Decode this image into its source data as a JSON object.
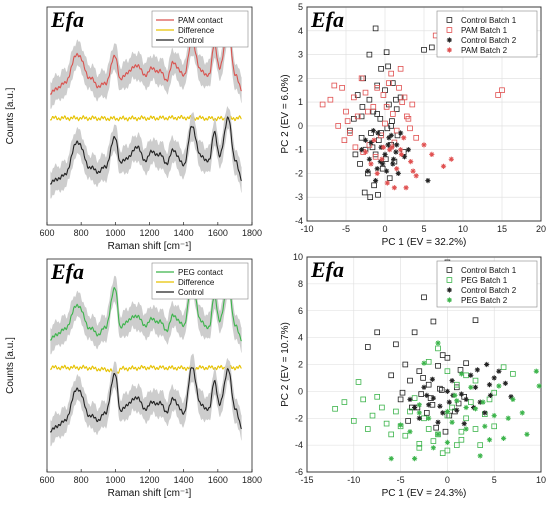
{
  "chart_data": [
    {
      "type": "line",
      "panel_label": "Efa",
      "xlabel": "Raman shift [cm⁻¹]",
      "ylabel": "Counts [a.u.]",
      "xlim": [
        600,
        1800
      ],
      "xticks": [
        600,
        800,
        1000,
        1200,
        1400,
        1600,
        1800
      ],
      "legend": {
        "placement": "top-right",
        "entries": [
          "PAM contact",
          "Difference",
          "Control"
        ]
      },
      "series": [
        {
          "name": "PAM contact",
          "color": "#d9534f",
          "band_color": "#c8c8c8",
          "x": [
            620,
            700,
            780,
            850,
            900,
            940,
            1000,
            1030,
            1080,
            1130,
            1170,
            1210,
            1260,
            1300,
            1340,
            1400,
            1450,
            1500,
            1550,
            1580,
            1610,
            1660,
            1700,
            1740
          ],
          "y": [
            3.2,
            3.6,
            5.0,
            3.9,
            3.5,
            3.6,
            4.9,
            3.8,
            4.2,
            4.5,
            4.0,
            4.3,
            4.2,
            3.8,
            4.6,
            4.0,
            5.6,
            4.2,
            4.0,
            5.5,
            4.3,
            6.2,
            4.1,
            3.3
          ]
        },
        {
          "name": "Difference",
          "color": "#e6c200",
          "x": [
            620,
            800,
            1000,
            1200,
            1400,
            1600,
            1740
          ],
          "y": [
            2.0,
            2.0,
            1.98,
            2.0,
            2.02,
            1.98,
            2.0
          ]
        },
        {
          "name": "Control",
          "color": "#222222",
          "band_color": "#c8c8c8",
          "x": [
            620,
            700,
            780,
            850,
            900,
            940,
            1000,
            1030,
            1080,
            1130,
            1170,
            1210,
            1260,
            1300,
            1340,
            1400,
            1450,
            1500,
            1550,
            1580,
            1610,
            1660,
            1700,
            1740
          ],
          "y": [
            -1.0,
            -0.7,
            0.9,
            -0.3,
            -0.5,
            -0.3,
            1.1,
            -0.1,
            0.2,
            0.7,
            0.0,
            0.4,
            0.3,
            -0.1,
            0.5,
            -0.2,
            1.6,
            0.2,
            0.0,
            1.4,
            0.2,
            2.0,
            0.1,
            -0.9
          ]
        }
      ]
    },
    {
      "type": "scatter",
      "panel_label": "Efa",
      "xlabel": "PC 1 (EV = 32.2%)",
      "ylabel": "PC 2 (EV = 6.0%)",
      "xlim": [
        -10,
        20
      ],
      "ylim": [
        -4,
        5
      ],
      "xticks": [
        -10,
        -5,
        0,
        5,
        10,
        15,
        20
      ],
      "yticks": [
        -4,
        -3,
        -2,
        -1,
        0,
        1,
        2,
        3,
        4,
        5
      ],
      "grid": true,
      "legend": {
        "placement": "top-right"
      },
      "series": [
        {
          "name": "Control Batch 1",
          "marker": "square",
          "color": "#222222",
          "x": [
            -3.5,
            -2.8,
            -2.0,
            -1.5,
            -1.0,
            -0.5,
            0.0,
            0.5,
            1.0,
            1.5,
            2.0,
            -3.0,
            -2.5,
            -1.8,
            -1.2,
            -0.8,
            0.3,
            0.8,
            1.2,
            -4.0,
            -3.2,
            -2.2,
            -1.4,
            -0.3,
            0.6,
            1.6,
            2.4,
            -2.6,
            -1.9,
            -0.9,
            0.1,
            0.9,
            -4.5,
            -3.8,
            -2.9,
            -1.6,
            -0.6,
            0.4,
            1.4,
            -1.2,
            0.2,
            -2.0,
            5.0,
            6.0,
            -0.5,
            0.8,
            -3.0,
            -1.0
          ],
          "y": [
            1.3,
            2.0,
            1.1,
            0.6,
            1.7,
            2.4,
            1.5,
            0.9,
            1.8,
            0.7,
            1.2,
            -0.5,
            -1.0,
            -0.3,
            -1.2,
            -0.6,
            -0.1,
            -0.8,
            -1.5,
            0.3,
            -1.6,
            -2.0,
            -2.5,
            -1.8,
            -2.2,
            -0.4,
            -1.1,
            -2.8,
            -3.0,
            -2.9,
            -1.4,
            0.2,
            -0.2,
            -1.2,
            0.8,
            -0.9,
            0.3,
            2.5,
            1.1,
            4.1,
            3.1,
            3.0,
            3.2,
            3.3,
            -0.3,
            0.0,
            0.4,
            0.5
          ]
        },
        {
          "name": "PAM Batch 1",
          "marker": "square",
          "color": "#e05050",
          "x": [
            -8.0,
            -7.0,
            -6.0,
            -5.5,
            -5.0,
            -4.5,
            -4.0,
            -3.5,
            -3.0,
            -2.5,
            -2.0,
            -1.5,
            -1.0,
            -0.5,
            0.0,
            0.5,
            1.0,
            1.5,
            2.0,
            2.5,
            3.0,
            3.5,
            4.0,
            14.5,
            15.0,
            -6.5,
            -4.8,
            -3.8,
            -2.2,
            -1.2,
            0.2,
            1.2,
            2.2,
            3.2,
            -5.2,
            -2.8,
            -0.2,
            2.8,
            6.5,
            0.8,
            1.8
          ],
          "y": [
            0.9,
            1.1,
            0.0,
            1.6,
            0.6,
            -0.3,
            1.2,
            0.4,
            2.0,
            1.4,
            -0.8,
            0.8,
            1.6,
            -0.4,
            0.1,
            1.8,
            0.5,
            -0.2,
            2.4,
            1.2,
            0.3,
            0.9,
            -0.5,
            1.3,
            1.5,
            1.7,
            0.2,
            -0.9,
            0.6,
            -1.3,
            0.8,
            -0.7,
            1.0,
            -0.1,
            -0.6,
            -1.1,
            1.3,
            0.4,
            3.8,
            2.2,
            1.6
          ]
        },
        {
          "name": "Control Batch 2",
          "marker": "star",
          "color": "#222222",
          "x": [
            -3.0,
            -2.5,
            -2.0,
            -1.5,
            -1.0,
            -0.5,
            0.0,
            0.5,
            1.0,
            1.5,
            2.0,
            2.5,
            -1.8,
            -1.2,
            -0.6,
            0.2,
            0.8,
            1.4,
            -2.2,
            -0.9,
            0.4,
            1.7,
            3.0,
            5.5,
            -0.3,
            1.1
          ],
          "y": [
            -1.0,
            -0.6,
            -1.4,
            -0.2,
            -1.8,
            -0.9,
            -1.2,
            -0.5,
            -1.6,
            -0.8,
            -0.3,
            -1.3,
            -0.7,
            -2.3,
            -1.5,
            -1.9,
            -0.4,
            -1.1,
            -1.9,
            -0.3,
            -0.8,
            -2.0,
            -1.0,
            -2.3,
            -1.6,
            -1.4
          ]
        },
        {
          "name": "PAM Batch 2",
          "marker": "star",
          "color": "#e05050",
          "x": [
            -2.5,
            -1.8,
            -1.0,
            -0.4,
            0.3,
            0.9,
            1.5,
            2.1,
            2.7,
            3.3,
            4.0,
            5.0,
            6.0,
            7.5,
            -1.4,
            0.6,
            2.4,
            3.6,
            8.5,
            1.2,
            -0.2,
            2.0
          ],
          "y": [
            -1.1,
            -1.6,
            -2.0,
            -1.4,
            -2.4,
            -0.9,
            -1.8,
            -1.2,
            -2.6,
            -1.5,
            -2.1,
            -0.8,
            -1.2,
            -1.7,
            -0.6,
            -1.0,
            -0.5,
            -1.9,
            -1.4,
            -2.6,
            -0.9,
            -1.0
          ]
        }
      ]
    },
    {
      "type": "line",
      "panel_label": "Efa",
      "xlabel": "Raman shift [cm⁻¹]",
      "ylabel": "Counts [a.u.]",
      "xlim": [
        600,
        1800
      ],
      "xticks": [
        600,
        800,
        1000,
        1200,
        1400,
        1600,
        1800
      ],
      "legend": {
        "placement": "top-right",
        "entries": [
          "PEG contact",
          "Difference",
          "Control"
        ]
      },
      "series": [
        {
          "name": "PEG contact",
          "color": "#3cb44b",
          "band_color": "#c8c8c8",
          "x": [
            620,
            700,
            780,
            850,
            900,
            940,
            1000,
            1030,
            1080,
            1130,
            1170,
            1210,
            1260,
            1300,
            1340,
            1400,
            1450,
            1500,
            1550,
            1580,
            1610,
            1660,
            1700,
            1740
          ],
          "y": [
            3.4,
            3.8,
            5.0,
            3.9,
            3.6,
            3.9,
            5.8,
            3.9,
            4.3,
            4.5,
            4.0,
            4.3,
            4.2,
            3.8,
            4.5,
            4.0,
            6.1,
            4.2,
            3.9,
            5.5,
            4.2,
            6.0,
            4.1,
            3.3
          ]
        },
        {
          "name": "Difference",
          "color": "#e6c200",
          "x": [
            620,
            800,
            960,
            1000,
            1040,
            1200,
            1400,
            1600,
            1740
          ],
          "y": [
            2.0,
            2.0,
            1.9,
            1.75,
            1.95,
            2.0,
            1.98,
            2.0,
            2.0
          ]
        },
        {
          "name": "Control",
          "color": "#222222",
          "band_color": "#c8c8c8",
          "x": [
            620,
            700,
            780,
            850,
            900,
            940,
            1000,
            1030,
            1080,
            1130,
            1170,
            1210,
            1260,
            1300,
            1340,
            1400,
            1450,
            1500,
            1550,
            1580,
            1610,
            1660,
            1700,
            1740
          ],
          "y": [
            -1.0,
            -0.6,
            1.0,
            -0.3,
            -0.5,
            -0.2,
            1.7,
            -0.1,
            0.3,
            0.6,
            0.0,
            0.3,
            0.3,
            -0.1,
            0.5,
            -0.2,
            2.0,
            0.2,
            0.0,
            1.4,
            0.2,
            1.9,
            0.1,
            -0.9
          ]
        }
      ]
    },
    {
      "type": "scatter",
      "panel_label": "Efa",
      "xlabel": "PC 1 (EV = 24.3%)",
      "ylabel": "PC 2 (EV = 10.7%)",
      "xlim": [
        -15,
        10
      ],
      "ylim": [
        -6,
        10
      ],
      "xticks": [
        -15,
        -10,
        -5,
        0,
        5,
        10
      ],
      "yticks": [
        -6,
        -4,
        -2,
        0,
        2,
        4,
        6,
        8,
        10
      ],
      "grid": true,
      "legend": {
        "placement": "top-right"
      },
      "series": [
        {
          "name": "Control Batch 1",
          "marker": "square",
          "color": "#222222",
          "x": [
            -5.5,
            -4.5,
            -3.5,
            -2.5,
            -1.5,
            -0.5,
            0.5,
            1.5,
            2.5,
            -4.0,
            -3.0,
            -2.0,
            -1.0,
            0.0,
            1.0,
            2.0,
            -5.0,
            -3.8,
            -2.8,
            -1.8,
            -0.8,
            0.2,
            1.2,
            -6.0,
            -4.2,
            -2.2,
            -0.2,
            1.8,
            -1.2,
            0.8,
            -3.2,
            -7.5,
            -8.5,
            3.0,
            -2.6,
            1.4,
            -0.6,
            -4.8,
            0.0,
            -1.6
          ],
          "y": [
            3.5,
            2.0,
            4.4,
            7.0,
            5.2,
            2.7,
            6.6,
            6.8,
            7.0,
            0.8,
            1.5,
            0.5,
            1.9,
            2.5,
            0.3,
            2.1,
            -0.6,
            -1.2,
            -0.2,
            -0.5,
            0.2,
            -1.8,
            -0.9,
            1.2,
            -2.2,
            -1.6,
            -3.0,
            -0.4,
            -2.7,
            -1.5,
            -1.2,
            4.4,
            3.3,
            5.3,
            1.0,
            1.6,
            0.1,
            -0.1,
            9.6,
            -1.0
          ]
        },
        {
          "name": "PEG Batch 1",
          "marker": "square",
          "color": "#3cb44b",
          "x": [
            -12.0,
            -11.0,
            -10.0,
            -9.0,
            -8.0,
            -7.0,
            -6.0,
            -5.0,
            -4.0,
            -3.0,
            -2.0,
            -1.0,
            0.0,
            1.0,
            2.0,
            3.0,
            4.0,
            5.0,
            6.0,
            -9.5,
            -8.5,
            -7.5,
            -6.5,
            -5.5,
            -4.5,
            -3.5,
            -2.5,
            -1.5,
            -0.5,
            0.5,
            1.5,
            2.5,
            3.5,
            4.5,
            -2.0,
            0.0,
            2.0,
            -1.0,
            1.0,
            3.0,
            5.0,
            7.0,
            0.0,
            -3.0,
            1.5
          ],
          "y": [
            -1.3,
            -0.8,
            -2.2,
            -0.6,
            -1.8,
            -1.2,
            -3.2,
            -2.6,
            -1.5,
            -3.9,
            -2.8,
            -3.2,
            -1.8,
            -4.0,
            -2.0,
            -2.8,
            -1.7,
            -2.6,
            1.8,
            0.7,
            -2.8,
            -0.4,
            -2.4,
            -1.5,
            -3.3,
            -0.5,
            -2.0,
            -3.7,
            -4.6,
            -1.2,
            -3.0,
            -0.8,
            -4.0,
            -0.6,
            2.2,
            1.5,
            1.2,
            3.2,
            0.5,
            0.8,
            -0.1,
            1.3,
            -4.4,
            -4.2,
            -3.6
          ]
        },
        {
          "name": "Control Batch 2",
          "marker": "star",
          "color": "#222222",
          "x": [
            -3.5,
            -2.5,
            -1.5,
            -0.5,
            0.5,
            1.5,
            2.5,
            3.5,
            4.5,
            5.5,
            -3.0,
            -2.0,
            -1.0,
            0.0,
            1.0,
            2.0,
            3.0,
            4.0,
            5.0,
            -2.2,
            -0.8,
            0.6,
            1.8,
            3.2,
            4.6,
            6.2,
            -1.6,
            0.2,
            2.8,
            4.2,
            -4.0,
            6.8
          ],
          "y": [
            -1.2,
            0.3,
            -0.5,
            -1.6,
            0.8,
            -0.2,
            1.2,
            -0.8,
            0.5,
            1.5,
            -2.0,
            -1.0,
            -2.3,
            0.0,
            -1.4,
            -0.6,
            0.3,
            -1.6,
            1.0,
            -0.3,
            -1.1,
            -0.3,
            -2.4,
            1.6,
            -0.3,
            0.6,
            0.9,
            -0.8,
            -1.2,
            2.0,
            -0.6,
            -0.4
          ]
        },
        {
          "name": "PEG Batch 2",
          "marker": "star",
          "color": "#3cb44b",
          "x": [
            -5.0,
            -4.0,
            -3.0,
            -2.0,
            -1.0,
            0.0,
            1.0,
            2.0,
            3.0,
            4.0,
            5.0,
            6.0,
            7.0,
            8.0,
            9.5,
            -3.5,
            -1.5,
            0.5,
            2.5,
            4.5,
            6.5,
            -2.5,
            0.0,
            1.5,
            3.5,
            5.5,
            -6.0,
            -1.0,
            2.0,
            8.5,
            9.8,
            -3.0,
            0.8,
            3.8
          ],
          "y": [
            -2.5,
            -3.0,
            -1.0,
            -2.0,
            -3.2,
            -1.5,
            -0.7,
            -2.8,
            -1.3,
            -2.6,
            -1.8,
            -3.5,
            -0.6,
            -1.6,
            1.5,
            -5.0,
            -4.2,
            -2.3,
            0.3,
            -3.6,
            -2.0,
            2.1,
            -3.8,
            1.3,
            -4.8,
            0.4,
            -5.0,
            3.6,
            -1.2,
            -3.2,
            0.4,
            -1.6,
            -0.3,
            -0.8
          ]
        }
      ]
    }
  ]
}
